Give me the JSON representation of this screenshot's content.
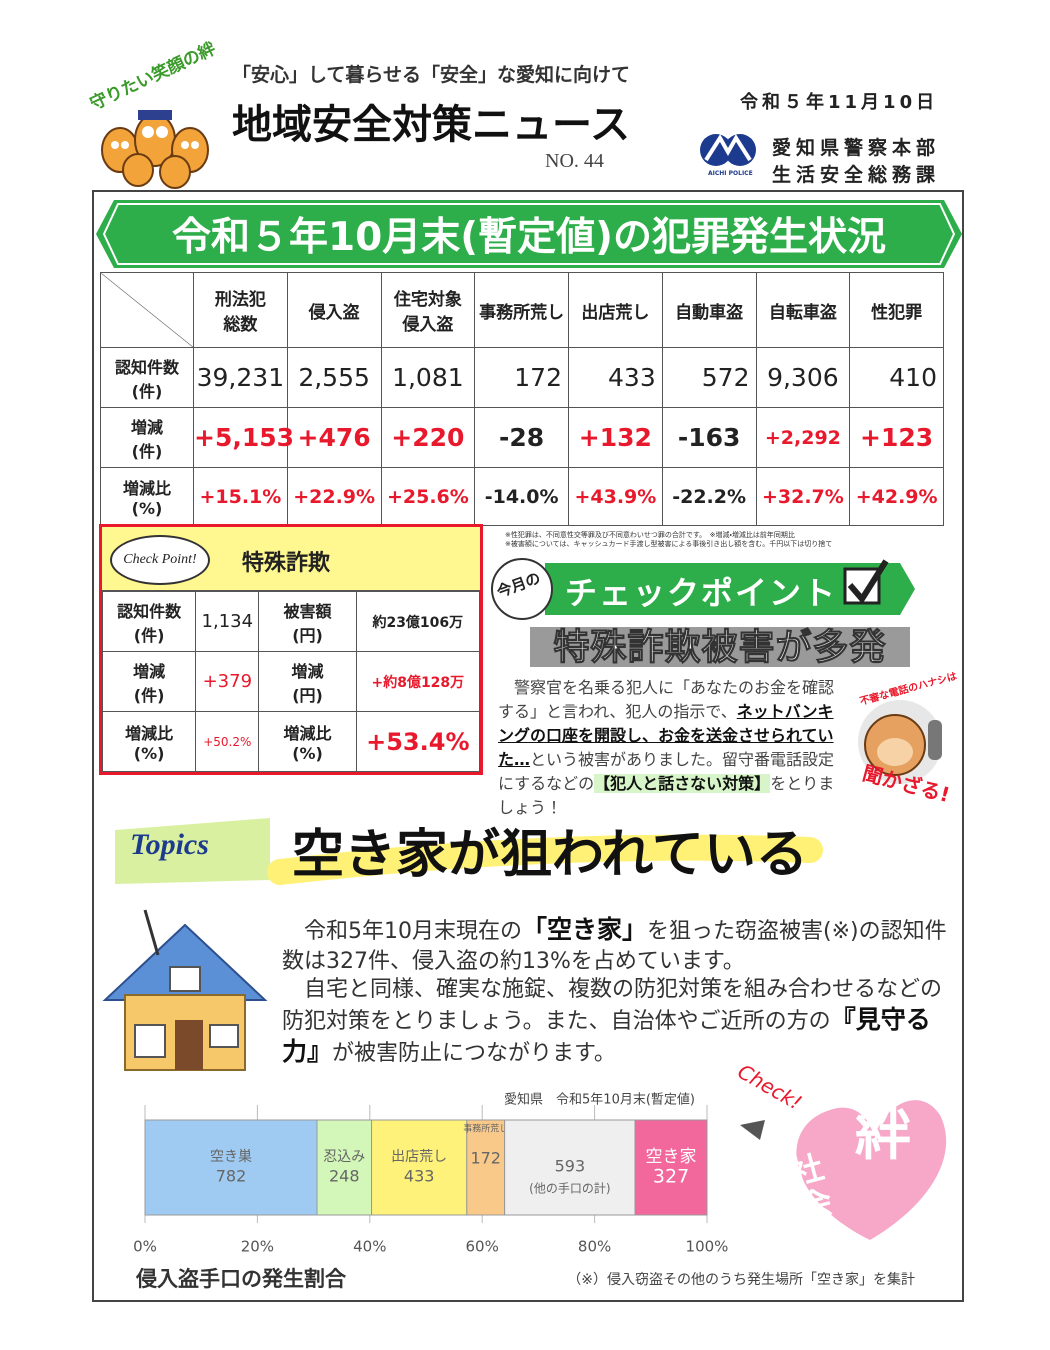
{
  "header": {
    "slogan": "守りたい笑顔の絆",
    "subtitle": "「安心」して暮らせる「安全」な愛知に向けて",
    "title": "地域安全対策ニュース",
    "issue": "NO. 44",
    "date": "令和５年11月10日",
    "logo_text": "AICHI POLICE",
    "org": "愛知県警察本部",
    "dept": "生活安全総務課"
  },
  "crime_section": {
    "title": "令和５年10月末(暫定値)の犯罪発生状況",
    "table": {
      "columns": [
        "刑法犯\n総数",
        "侵入盗",
        "住宅対象\n侵入盗",
        "事務所荒し",
        "出店荒し",
        "自動車盗",
        "自転車盗",
        "性犯罪"
      ],
      "rows": [
        {
          "label": "認知件数\n(件)",
          "cells": [
            "39,231",
            "2,555",
            "1,081",
            "172",
            "433",
            "572",
            "9,306",
            "410"
          ]
        },
        {
          "label": "増減\n(件)",
          "cells": [
            "+5,153",
            "+476",
            "+220",
            "-28",
            "+132",
            "-163",
            "+2,292",
            "+123"
          ]
        },
        {
          "label": "増減比\n(%)",
          "cells": [
            "+15.1%",
            "+22.9%",
            "+25.6%",
            "-14.0%",
            "+43.9%",
            "-22.2%",
            "+32.7%",
            "+42.9%"
          ]
        }
      ]
    },
    "notes": [
      "※性犯罪は、不同意性交等罪及び不同意わいせつ罪の合計です。　※増減・増減比は前年同期比",
      "※被害額については、キャッシュカード手渡し型被害による事後引き出し額を含む。千円以下は切り捨て"
    ]
  },
  "fraud_box": {
    "badge": "Check Point!",
    "title": "特殊詐欺",
    "rows": [
      [
        "認知件数\n(件)",
        "1,134",
        "被害額\n(円)",
        "約23億106万"
      ],
      [
        "増減\n(件)",
        "+379",
        "増減\n(円)",
        "+約8億128万"
      ],
      [
        "増減比\n(%)",
        "+50.2%",
        "増減比\n(%)",
        "+53.4%"
      ]
    ]
  },
  "checkpoint": {
    "badge": "今月の",
    "title": "チェックポイント",
    "headline": "特殊詐欺被害が多発",
    "text_parts": [
      "警察官を名乗る犯人に「あなたのお金を確認する」と言われ、犯人の指示で、",
      "ネットバンキングの口座を開設し、お金を送金させられていた…",
      "という被害がありました。留守番電話設定にするなどの",
      "【犯人と話さない対策】",
      "をとりましょう！"
    ],
    "illustration_caption": "不審な電話のハナシは",
    "illustration_slogan": "聞かざる!"
  },
  "topics": {
    "label": "Topics",
    "title": "空き家が狙われている",
    "paragraph1": [
      "令和5年10月末現在の",
      "「空き家」",
      "を狙った窃盗被害(※)の認知件数は327件、侵入盗の約13%を占めています。"
    ],
    "paragraph2": [
      "自宅と同様、確実な施錠、複数の防犯対策を組み合わせるなどの防犯対策をとりましょう。また、自治体やご近所の方の",
      "『見守る力』",
      "が被害防止につながります。"
    ]
  },
  "chart_data": {
    "type": "stacked_bar",
    "title": "侵入盗手口の発生割合",
    "subtitle": "愛知県　令和5年10月末(暫定値)",
    "note": "（※）侵入窃盗その他のうち発生場所「空き家」を集計",
    "series": [
      {
        "name": "空き巣",
        "color": "#9fcbf2",
        "values": [
          782
        ]
      },
      {
        "name": "忍込み",
        "color": "#d3f7b8",
        "values": [
          248
        ]
      },
      {
        "name": "出店荒し",
        "color": "#fff27a",
        "values": [
          433
        ]
      },
      {
        "name": "事務所荒し",
        "color": "#f9c98a",
        "values": [
          172
        ]
      },
      {
        "name": "(他の手口の計)",
        "color": "#efefef",
        "values": [
          593
        ]
      },
      {
        "name": "空き家",
        "color": "#f2689c",
        "values": [
          327
        ]
      }
    ],
    "xlim": [
      0,
      100
    ],
    "xticks": [
      {
        "value": 0,
        "label": "0%"
      },
      {
        "value": 20,
        "label": "20%"
      },
      {
        "value": 40,
        "label": "40%"
      },
      {
        "value": 60,
        "label": "60%"
      },
      {
        "value": 80,
        "label": "80%"
      },
      {
        "value": 100,
        "label": "100%"
      }
    ],
    "grid": true
  },
  "badge": {
    "check": "Check!",
    "kizuna": "絆",
    "shakai": "社会の"
  }
}
